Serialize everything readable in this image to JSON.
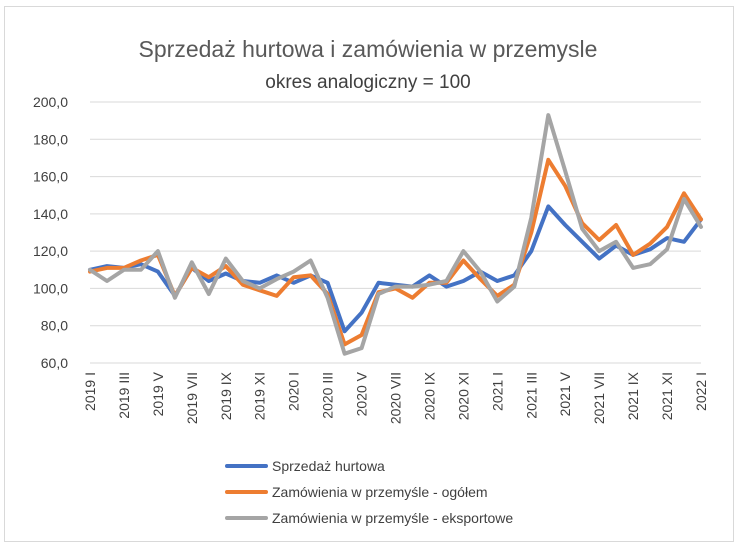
{
  "chart_data": {
    "type": "line",
    "title": "Sprzedaż hurtowa i zamówienia w przemysle",
    "subtitle": "okres analogiczny = 100",
    "xlabel": "",
    "ylabel": "",
    "ylim": [
      60,
      200
    ],
    "yticks": [
      "60,0",
      "80,0",
      "100,0",
      "120,0",
      "140,0",
      "160,0",
      "180,0",
      "200,0"
    ],
    "ytick_values": [
      60,
      80,
      100,
      120,
      140,
      160,
      180,
      200
    ],
    "grid": true,
    "legend_position": "bottom",
    "categories": [
      "2019 I",
      "2019 II",
      "2019 III",
      "2019 IV",
      "2019 V",
      "2019 VI",
      "2019 VII",
      "2019 VIII",
      "2019 IX",
      "2019 X",
      "2019 XI",
      "2019 XII",
      "2020 I",
      "2020 II",
      "2020 III",
      "2020 IV",
      "2020 V",
      "2020 VI",
      "2020 VII",
      "2020 VIII",
      "2020 IX",
      "2020 X",
      "2020 XI",
      "2020 XII",
      "2021 I",
      "2021 II",
      "2021 III",
      "2021 IV",
      "2021 V",
      "2021 VI",
      "2021 VII",
      "2021 VIII",
      "2021 IX",
      "2021 X",
      "2021 XI",
      "2021 XII",
      "2022 I"
    ],
    "tick_labels_shown": [
      "2019 I",
      "2019 III",
      "2019 V",
      "2019 VII",
      "2019 IX",
      "2019 XI",
      "2020 I",
      "2020 III",
      "2020 V",
      "2020 VII",
      "2020 IX",
      "2020 XI",
      "2021 I",
      "2021 III",
      "2021 V",
      "2021 VII",
      "2021 IX",
      "2021 XI",
      "2022 I"
    ],
    "series": [
      {
        "name": "Sprzedaż hurtowa",
        "color": "#4472c4",
        "values": [
          110,
          112,
          111,
          113,
          109,
          96,
          111,
          104,
          108,
          104,
          103,
          107,
          103,
          107,
          103,
          77,
          87,
          103,
          102,
          101,
          107,
          101,
          104,
          109,
          104,
          107,
          120,
          144,
          134,
          125,
          116,
          123,
          118,
          121,
          127,
          125,
          137
        ]
      },
      {
        "name": "Zamówienia w przemyśle - ogółem",
        "color": "#ed7d31",
        "values": [
          109,
          111,
          111,
          115,
          118,
          96,
          111,
          106,
          112,
          102,
          99,
          96,
          106,
          107,
          97,
          70,
          75,
          98,
          100,
          95,
          103,
          103,
          115,
          105,
          96,
          102,
          130,
          169,
          155,
          135,
          126,
          134,
          118,
          124,
          133,
          151,
          137
        ]
      },
      {
        "name": "Zamówienia w przemyśle - eksportowe",
        "color": "#a5a5a5",
        "values": [
          110,
          104,
          110,
          110,
          120,
          95,
          114,
          97,
          116,
          104,
          100,
          105,
          109,
          115,
          95,
          65,
          68,
          97,
          101,
          101,
          102,
          104,
          120,
          109,
          93,
          101,
          138,
          193,
          163,
          132,
          120,
          125,
          111,
          113,
          121,
          148,
          133
        ]
      }
    ]
  }
}
